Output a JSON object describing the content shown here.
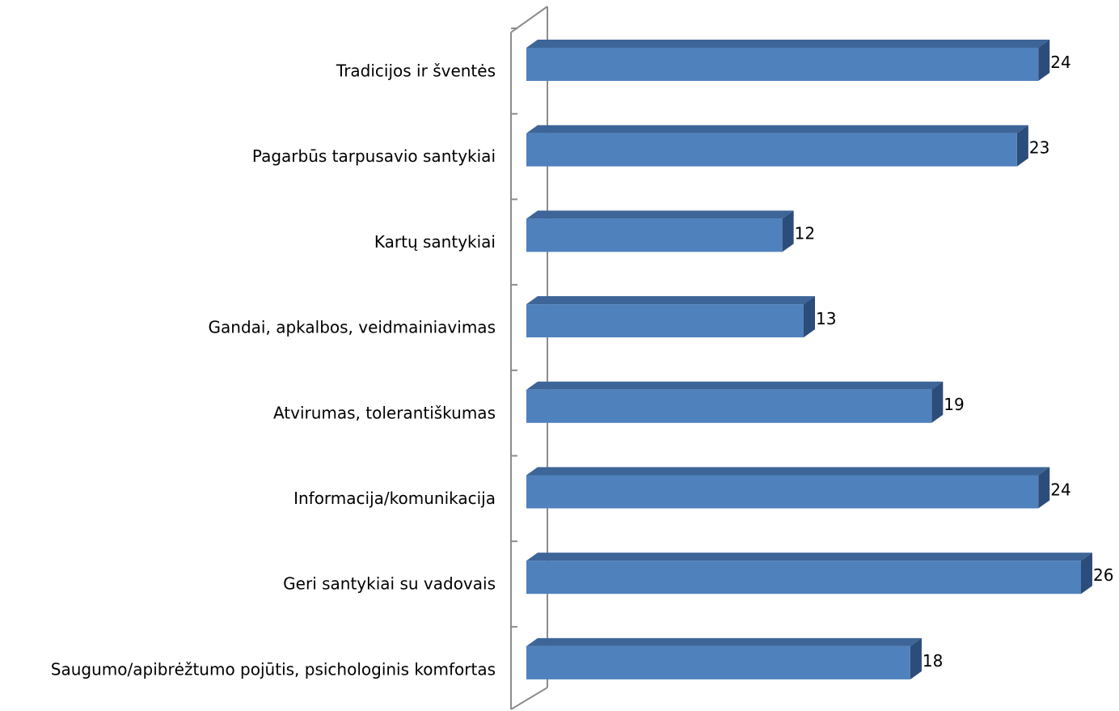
{
  "chart_data": {
    "type": "bar3d-horizontal",
    "categories": [
      "Tradicijos ir šventės",
      "Pagarbūs tarpusavio santykiai",
      "Kartų santykiai",
      "Gandai, apkalbos, veidmainiavimas",
      "Atvirumas, tolerantiškumas",
      "Informacija/komunikacija",
      "Geri santykiai su vadovais",
      "Saugumo/apibrėžtumo pojūtis, psichologinis komfortas"
    ],
    "values": [
      24,
      23,
      12,
      13,
      19,
      24,
      26,
      18
    ],
    "xlim": [
      0,
      26
    ],
    "color": "#4f81bd",
    "top_color": "#3d6597",
    "side_color": "#2c4d7a"
  }
}
